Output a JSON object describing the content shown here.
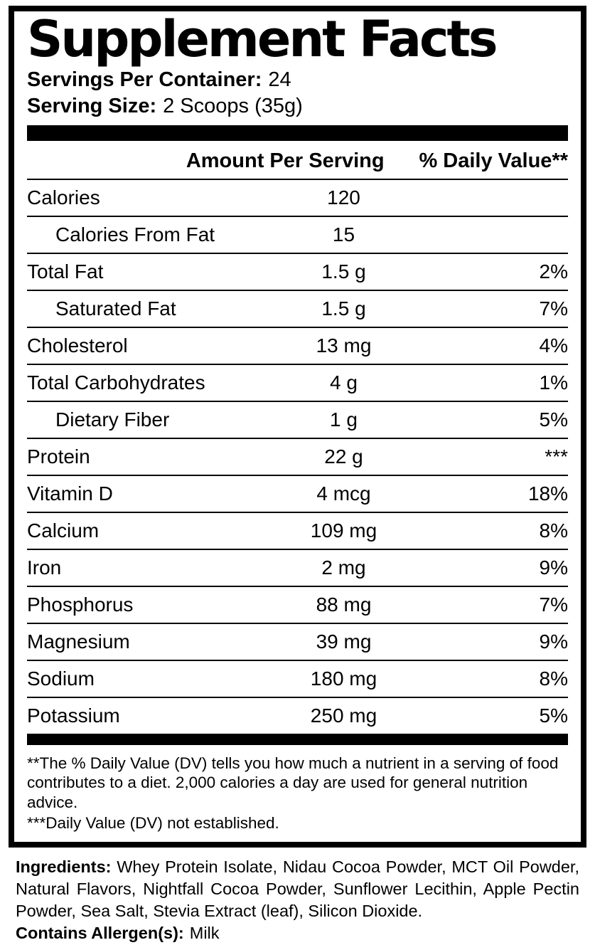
{
  "title": "Supplement Facts",
  "serving_info": {
    "servings_per_container_label": "Servings Per Container:",
    "servings_per_container_value": "24",
    "serving_size_label": "Serving Size:",
    "serving_size_value": "2 Scoops (35g)"
  },
  "table": {
    "header_amount": "Amount Per Serving",
    "header_dv": "% Daily Value**",
    "rows": [
      {
        "name": "Calories",
        "amount": "120",
        "dv": ""
      },
      {
        "name": "Calories From Fat",
        "amount": "15",
        "dv": ""
      },
      {
        "name": "Total Fat",
        "amount": "1.5 g",
        "dv": "2%"
      },
      {
        "name": "Saturated Fat",
        "amount": "1.5 g",
        "dv": "7%"
      },
      {
        "name": "Cholesterol",
        "amount": "13 mg",
        "dv": "4%"
      },
      {
        "name": "Total Carbohydrates",
        "amount": "4 g",
        "dv": "1%"
      },
      {
        "name": "Dietary Fiber",
        "amount": "1 g",
        "dv": "5%"
      },
      {
        "name": "Protein",
        "amount": "22 g",
        "dv": "***"
      },
      {
        "name": "Vitamin D",
        "amount": "4 mcg",
        "dv": "18%"
      },
      {
        "name": "Calcium",
        "amount": "109 mg",
        "dv": "8%"
      },
      {
        "name": "Iron",
        "amount": "2 mg",
        "dv": "9%"
      },
      {
        "name": "Phosphorus",
        "amount": "88 mg",
        "dv": "7%"
      },
      {
        "name": "Magnesium",
        "amount": "39 mg",
        "dv": "9%"
      },
      {
        "name": "Sodium",
        "amount": "180 mg",
        "dv": "8%"
      },
      {
        "name": "Potassium",
        "amount": "250 mg",
        "dv": "5%"
      }
    ]
  },
  "footnotes": {
    "dv_note": "**The % Daily Value (DV) tells you how much a nutrient in a serving of food contributes to a diet. 2,000 calories a day are used for general nutrition advice.",
    "not_established_note": "***Daily Value (DV) not established."
  },
  "ingredients": {
    "label": "Ingredients:",
    "text": " Whey Protein Isolate, Nidau Cocoa Powder, MCT Oil Powder, Natural Flavors, Nightfall Cocoa Powder, Sunflower Lecithin, Apple Pectin Powder, Sea Salt, Stevia Extract (leaf), Silicon Dioxide.",
    "allergen_label": "Contains Allergen(s):",
    "allergen_value": "Milk"
  }
}
